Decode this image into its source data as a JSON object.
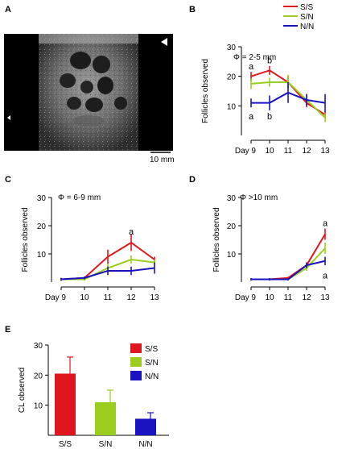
{
  "colors": {
    "SS": "#e0161e",
    "SN": "#9acd1e",
    "NN": "#1a12c0",
    "axis": "#000000"
  },
  "panel_a": {
    "letter": "A",
    "scale_bar_label": "10 mm",
    "image_description_icon": "ultrasound-ovary-image"
  },
  "legend_b": {
    "entries": [
      {
        "key": "SS",
        "label": "S/S"
      },
      {
        "key": "SN",
        "label": "S/N"
      },
      {
        "key": "NN",
        "label": "N/N"
      }
    ]
  },
  "chart_data": [
    {
      "id": "B",
      "letter": "B",
      "type": "line",
      "annotation": "Φ = 2-5 mm",
      "ylabel": "Follicles observed",
      "ylim": [
        0,
        30
      ],
      "yticks": [
        10,
        20,
        30
      ],
      "categories": [
        "Day 9",
        "10",
        "11",
        "12",
        "13"
      ],
      "x": [
        9,
        10,
        11,
        12,
        13
      ],
      "series": [
        {
          "name": "S/S",
          "key": "SS",
          "values": [
            20,
            22,
            18,
            11,
            7
          ],
          "err": [
            1.5,
            1.5,
            2,
            1.5,
            1.2
          ]
        },
        {
          "name": "S/N",
          "key": "SN",
          "values": [
            17.5,
            18,
            18,
            12,
            6
          ],
          "err": [
            1.8,
            1.5,
            2.5,
            2,
            1.5
          ]
        },
        {
          "name": "N/N",
          "key": "NN",
          "values": [
            11,
            11,
            14.5,
            12,
            11
          ],
          "err": [
            1.5,
            2.5,
            3.5,
            2,
            3
          ]
        }
      ],
      "letters": [
        {
          "text": "a",
          "x": 9,
          "y": 23.5
        },
        {
          "text": "b",
          "x": 10,
          "y": 25.5
        },
        {
          "text": "a",
          "x": 9,
          "y": 6.5
        },
        {
          "text": "b",
          "x": 10,
          "y": 6.5
        }
      ]
    },
    {
      "id": "C",
      "letter": "C",
      "type": "line",
      "annotation": "Φ = 6-9 mm",
      "ylabel": "Follicles observed",
      "ylim": [
        0,
        30
      ],
      "yticks": [
        10,
        20,
        30
      ],
      "categories": [
        "Day 9",
        "10",
        "11",
        "12",
        "13"
      ],
      "x": [
        9,
        10,
        11,
        12,
        13
      ],
      "series": [
        {
          "name": "S/S",
          "key": "SS",
          "values": [
            1,
            1.5,
            9,
            14,
            8
          ],
          "err": [
            0.5,
            0.5,
            2.5,
            3,
            1
          ]
        },
        {
          "name": "S/N",
          "key": "SN",
          "values": [
            1,
            1,
            5,
            8,
            7
          ],
          "err": [
            0.5,
            0.5,
            1.5,
            1.5,
            1
          ]
        },
        {
          "name": "N/N",
          "key": "NN",
          "values": [
            1,
            1.5,
            4,
            4,
            5
          ],
          "err": [
            0.5,
            0.5,
            1.5,
            1.5,
            2
          ]
        }
      ],
      "letters": [
        {
          "text": "a",
          "x": 12,
          "y": 18
        }
      ]
    },
    {
      "id": "D",
      "letter": "D",
      "type": "line",
      "annotation": "Φ >10 mm",
      "ylabel": "Follicles observed",
      "ylim": [
        0,
        30
      ],
      "yticks": [
        10,
        20,
        30
      ],
      "categories": [
        "Day 9",
        "10",
        "11",
        "12",
        "13"
      ],
      "x": [
        9,
        10,
        11,
        12,
        13
      ],
      "series": [
        {
          "name": "S/S",
          "key": "SS",
          "values": [
            1,
            1,
            1.5,
            6,
            17
          ],
          "err": [
            0.4,
            0.4,
            0.4,
            1,
            2
          ]
        },
        {
          "name": "S/N",
          "key": "SN",
          "values": [
            1,
            1,
            1,
            5,
            12
          ],
          "err": [
            0.4,
            0.4,
            0.4,
            1,
            2
          ]
        },
        {
          "name": "N/N",
          "key": "NN",
          "values": [
            1,
            1,
            1,
            6,
            7.5
          ],
          "err": [
            0.4,
            0.4,
            0.4,
            1,
            1.5
          ]
        }
      ],
      "letters": [
        {
          "text": "a",
          "x": 13,
          "y": 21
        },
        {
          "text": "a",
          "x": 13,
          "y": 2.5
        }
      ]
    },
    {
      "id": "E",
      "letter": "E",
      "type": "bar",
      "ylabel": "CL observed",
      "ylim": [
        0,
        30
      ],
      "yticks": [
        10,
        20,
        30
      ],
      "categories": [
        "S/S",
        "S/N",
        "N/N"
      ],
      "keys": [
        "SS",
        "SN",
        "NN"
      ],
      "values": [
        20.5,
        11,
        5.5
      ],
      "err": [
        5.5,
        4,
        2
      ],
      "legend": [
        "S/S",
        "S/N",
        "N/N"
      ]
    }
  ]
}
